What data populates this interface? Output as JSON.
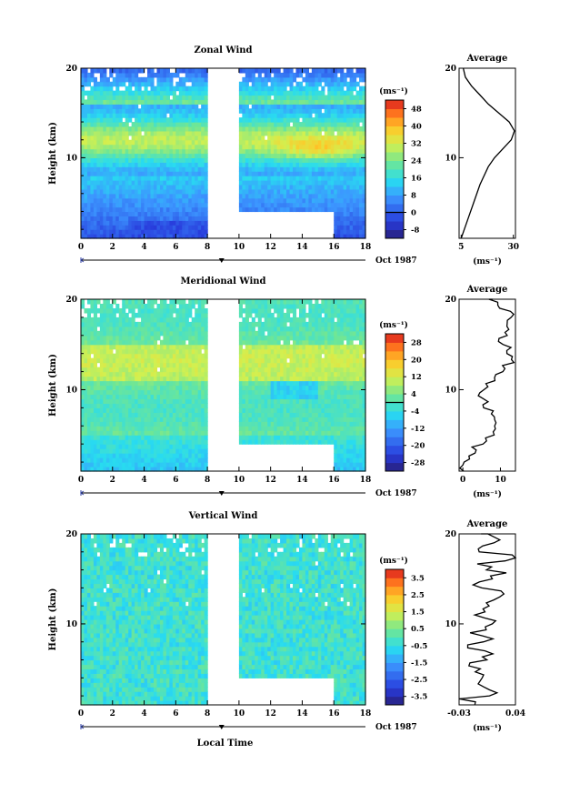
{
  "chart_data": [
    {
      "type": "heatmap",
      "title": "Zonal Wind",
      "ylabel": "Height (km)",
      "x_ticks": [
        "0",
        "2",
        "4",
        "6",
        "8",
        "10",
        "12",
        "14",
        "16",
        "18"
      ],
      "y_ticks": [
        "10",
        "20"
      ],
      "xlim": [
        0,
        18
      ],
      "ylim": [
        1,
        20
      ],
      "date_label": "Oct 1987",
      "units": "(ms⁻¹)",
      "colorbar_ticks": [
        "48",
        "40",
        "32",
        "24",
        "16",
        "8",
        "0",
        "-8"
      ],
      "colorbar_range": [
        -12,
        52
      ],
      "contour_level": 0,
      "data_gap_hours": [
        8,
        10
      ],
      "missing_block": {
        "hours": [
          8,
          16
        ],
        "height_below_km": 4
      },
      "profile_values_by_height": [
        [
          3,
          0
        ],
        [
          9,
          5
        ],
        [
          21,
          10
        ],
        [
          30,
          12
        ],
        [
          17,
          16
        ],
        [
          0,
          20
        ]
      ],
      "profile_height_km": [
        1,
        3,
        5,
        7,
        9,
        10,
        11,
        12,
        13,
        14,
        15,
        16,
        17,
        18,
        19,
        20
      ],
      "average": {
        "title": "Average",
        "xlim": [
          4,
          31
        ],
        "x_ticks": [
          "5",
          "30"
        ],
        "y_ticks": [
          "10",
          "20"
        ],
        "xlabel": "(ms⁻¹)",
        "values": [
          5,
          8,
          11,
          14,
          18,
          21,
          25,
          29,
          30.5,
          28,
          23,
          18,
          14,
          10,
          7,
          6
        ]
      }
    },
    {
      "type": "heatmap",
      "title": "Meridional Wind",
      "ylabel": "Height (km)",
      "x_ticks": [
        "0",
        "2",
        "4",
        "6",
        "8",
        "10",
        "12",
        "14",
        "16",
        "18"
      ],
      "y_ticks": [
        "10",
        "20"
      ],
      "xlim": [
        0,
        18
      ],
      "ylim": [
        1,
        20
      ],
      "date_label": "Oct 1987",
      "units": "(ms⁻¹)",
      "colorbar_ticks": [
        "28",
        "20",
        "12",
        "4",
        "-4",
        "-12",
        "-20",
        "-28"
      ],
      "colorbar_range": [
        -32,
        32
      ],
      "contour_level": 0,
      "data_gap_hours": [
        8,
        10
      ],
      "missing_block": {
        "hours": [
          8,
          16
        ],
        "height_below_km": 4
      },
      "profile_values_by_height": [
        [
          4,
          0
        ],
        [
          10,
          2
        ],
        [
          14,
          8
        ],
        [
          20,
          5
        ]
      ],
      "profile_height_km": [
        1,
        2,
        3,
        4,
        5,
        6,
        7,
        8,
        9,
        10,
        11,
        12,
        13,
        14,
        15,
        16,
        17,
        18,
        19,
        20
      ],
      "average": {
        "title": "Average",
        "xlim": [
          -1,
          14
        ],
        "x_ticks": [
          "0",
          "10"
        ],
        "y_ticks": [
          "10",
          "20"
        ],
        "xlabel": "(ms⁻¹)",
        "values": [
          0,
          1,
          3,
          6,
          8,
          9,
          8,
          6,
          5,
          6,
          8,
          11,
          13,
          12,
          10,
          12,
          11,
          13,
          9,
          7
        ]
      }
    },
    {
      "type": "heatmap",
      "title": "Vertical Wind",
      "ylabel": "Height (km)",
      "xlabel": "Local Time",
      "x_ticks": [
        "0",
        "2",
        "4",
        "6",
        "8",
        "10",
        "12",
        "14",
        "16",
        "18"
      ],
      "y_ticks": [
        "10",
        "20"
      ],
      "xlim": [
        0,
        18
      ],
      "ylim": [
        1,
        20
      ],
      "date_label": "Oct 1987",
      "units": "(ms⁻¹)",
      "colorbar_ticks": [
        "3.5",
        "2.5",
        "1.5",
        "0.5",
        "-0.5",
        "-1.5",
        "-2.5",
        "-3.5"
      ],
      "colorbar_range": [
        -4,
        4
      ],
      "data_gap_hours": [
        8,
        10
      ],
      "missing_block": {
        "hours": [
          8,
          16
        ],
        "height_below_km": 4
      },
      "profile_height_km": [
        1,
        2,
        3,
        4,
        5,
        6,
        7,
        8,
        9,
        10,
        11,
        12,
        13,
        14,
        15,
        16,
        17,
        18,
        19,
        20
      ],
      "average": {
        "title": "Average",
        "xlim": [
          -0.03,
          0.04
        ],
        "x_ticks": [
          "-0.03",
          "0.04"
        ],
        "y_ticks": [
          "10",
          "20"
        ],
        "xlabel": "(ms⁻¹)",
        "values": [
          -0.02,
          0.01,
          -0.01,
          0.0,
          -0.015,
          0.005,
          -0.01,
          0.0,
          -0.005,
          0.01,
          0.0,
          0.005,
          0.03,
          -0.005,
          0.02,
          0.0,
          0.035,
          -0.01,
          0.02,
          0.0
        ]
      }
    }
  ]
}
